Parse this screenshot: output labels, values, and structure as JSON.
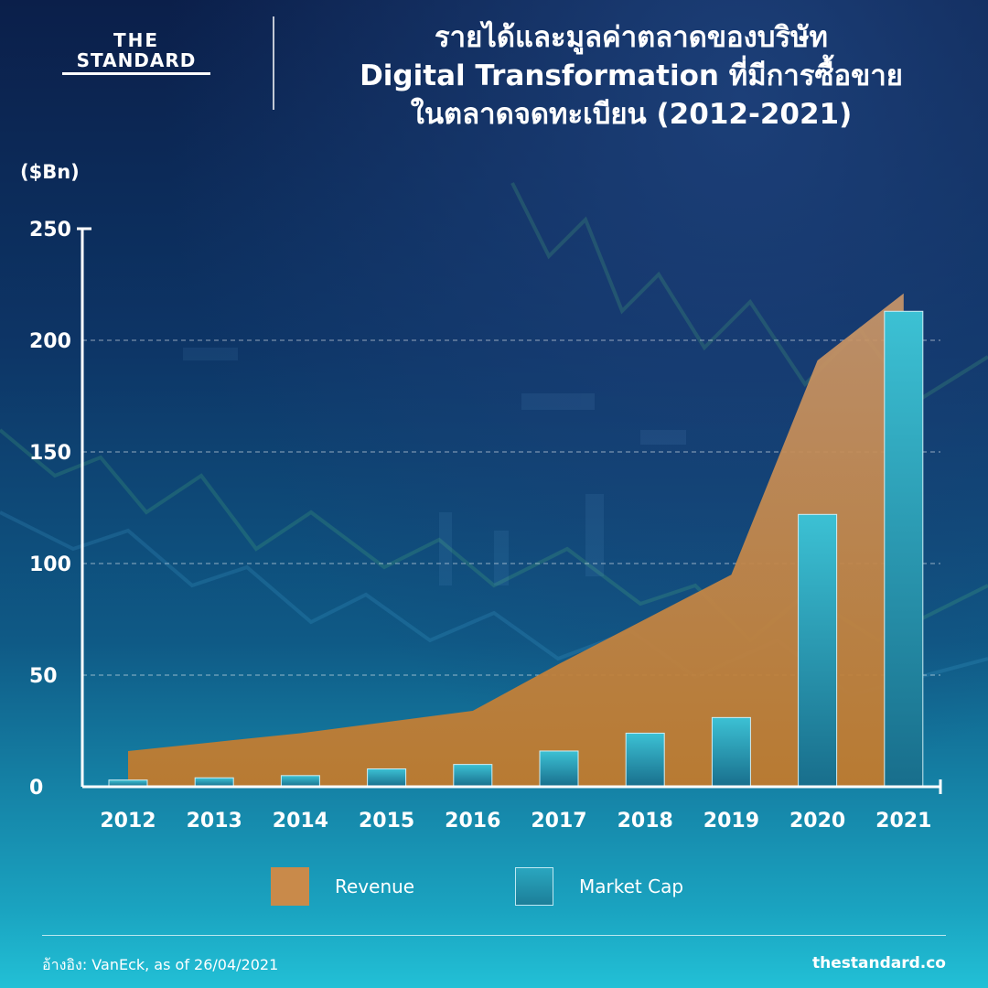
{
  "logo": {
    "line1": "THE",
    "line2": "STANDARD"
  },
  "title": {
    "line1": "รายได้และมูลค่าตลาดของบริษัท",
    "line2": "Digital Transformation ที่มีการซื้อขาย",
    "line3": "ในตลาดจดทะเบียน (2012-2021)"
  },
  "colors": {
    "revenue": "#c98a4a",
    "market_cap": "#2aa6bf",
    "axis": "#ffffff"
  },
  "chart_data": {
    "type": "bar",
    "title": "",
    "ylabel": "($Bn)",
    "xlabel": "",
    "ylim": [
      0,
      250
    ],
    "yticks": [
      0,
      50,
      100,
      150,
      200,
      250
    ],
    "grid": true,
    "categories": [
      "2012",
      "2013",
      "2014",
      "2015",
      "2016",
      "2017",
      "2018",
      "2019",
      "2020",
      "2021"
    ],
    "series": [
      {
        "name": "Revenue",
        "type": "area",
        "values": [
          16,
          20,
          24,
          29,
          34,
          55,
          75,
          95,
          191,
          221
        ]
      },
      {
        "name": "Market Cap",
        "type": "bar",
        "values": [
          3,
          4,
          5,
          8,
          10,
          16,
          24,
          31,
          122,
          213
        ]
      }
    ],
    "legend_position": "bottom"
  },
  "footer": {
    "source": "อ้างอิง: VanEck, as of 26/04/2021",
    "site": "thestandard.co"
  }
}
